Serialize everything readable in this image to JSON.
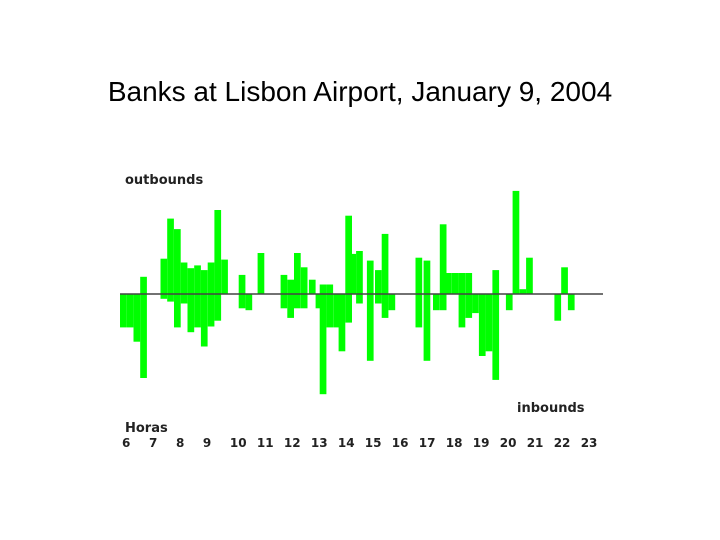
{
  "chart_data": {
    "type": "bar",
    "title": "Banks at Lisbon Airport, January 9, 2004",
    "top_label": "outbounds",
    "bottom_label": "inbounds",
    "xlabel": "Horas",
    "x_ticks": [
      "6",
      "7",
      "8",
      "9",
      "10",
      "11",
      "12",
      "13",
      "14",
      "15",
      "16",
      "17",
      "18",
      "19",
      "20",
      "21",
      "22",
      "23"
    ],
    "xlim": [
      6,
      23.9
    ],
    "ylim": [
      -110,
      110
    ],
    "bar_width_hours": 0.25,
    "color": "#00ff00",
    "series": [
      {
        "values": [
          {
            "t": 6.0,
            "v": -35
          },
          {
            "t": 6.25,
            "v": -35
          },
          {
            "t": 6.5,
            "v": -50
          },
          {
            "t": 6.75,
            "v": -88
          },
          {
            "t": 6.75,
            "v": 18
          },
          {
            "t": 7.5,
            "v": 37
          },
          {
            "t": 7.75,
            "v": 79
          },
          {
            "t": 8.0,
            "v": 68
          },
          {
            "t": 8.25,
            "v": 33
          },
          {
            "t": 8.5,
            "v": 27
          },
          {
            "t": 8.75,
            "v": 30
          },
          {
            "t": 9.0,
            "v": 25
          },
          {
            "t": 9.25,
            "v": 33
          },
          {
            "t": 9.5,
            "v": 88
          },
          {
            "t": 9.75,
            "v": 36
          },
          {
            "t": 7.5,
            "v": -5
          },
          {
            "t": 7.75,
            "v": -8
          },
          {
            "t": 8.0,
            "v": -35
          },
          {
            "t": 8.25,
            "v": -10
          },
          {
            "t": 8.5,
            "v": -40
          },
          {
            "t": 8.75,
            "v": -35
          },
          {
            "t": 9.0,
            "v": -55
          },
          {
            "t": 9.25,
            "v": -34
          },
          {
            "t": 9.5,
            "v": -28
          },
          {
            "t": 10.4,
            "v": 20
          },
          {
            "t": 10.4,
            "v": -15
          },
          {
            "t": 10.65,
            "v": -17
          },
          {
            "t": 11.1,
            "v": 43
          },
          {
            "t": 11.95,
            "v": 20
          },
          {
            "t": 12.2,
            "v": 15
          },
          {
            "t": 12.45,
            "v": 43
          },
          {
            "t": 12.7,
            "v": 28
          },
          {
            "t": 11.95,
            "v": -15
          },
          {
            "t": 12.2,
            "v": -25
          },
          {
            "t": 12.45,
            "v": -15
          },
          {
            "t": 12.7,
            "v": -15
          },
          {
            "t": 13.0,
            "v": 15
          },
          {
            "t": 13.25,
            "v": -15
          },
          {
            "t": 13.4,
            "v": -105
          },
          {
            "t": 13.65,
            "v": -35
          },
          {
            "t": 13.9,
            "v": -35
          },
          {
            "t": 13.4,
            "v": 10
          },
          {
            "t": 13.65,
            "v": 10
          },
          {
            "t": 14.1,
            "v": -60
          },
          {
            "t": 14.35,
            "v": 82
          },
          {
            "t": 14.5,
            "v": 42
          },
          {
            "t": 14.75,
            "v": 45
          },
          {
            "t": 14.35,
            "v": -30
          },
          {
            "t": 14.75,
            "v": -10
          },
          {
            "t": 15.15,
            "v": 35
          },
          {
            "t": 15.15,
            "v": -70
          },
          {
            "t": 15.45,
            "v": 25
          },
          {
            "t": 15.7,
            "v": 63
          },
          {
            "t": 15.45,
            "v": -10
          },
          {
            "t": 15.7,
            "v": -25
          },
          {
            "t": 15.95,
            "v": -17
          },
          {
            "t": 16.95,
            "v": 38
          },
          {
            "t": 16.95,
            "v": -35
          },
          {
            "t": 17.25,
            "v": -70
          },
          {
            "t": 17.25,
            "v": 35
          },
          {
            "t": 17.6,
            "v": -17
          },
          {
            "t": 17.85,
            "v": 73
          },
          {
            "t": 17.85,
            "v": -17
          },
          {
            "t": 18.05,
            "v": 22
          },
          {
            "t": 18.3,
            "v": 22
          },
          {
            "t": 18.55,
            "v": 22
          },
          {
            "t": 18.55,
            "v": -35
          },
          {
            "t": 18.8,
            "v": 22
          },
          {
            "t": 18.8,
            "v": -25
          },
          {
            "t": 19.05,
            "v": -20
          },
          {
            "t": 19.3,
            "v": -65
          },
          {
            "t": 19.55,
            "v": -60
          },
          {
            "t": 19.8,
            "v": -90
          },
          {
            "t": 19.8,
            "v": 25
          },
          {
            "t": 20.3,
            "v": -17
          },
          {
            "t": 20.55,
            "v": 108
          },
          {
            "t": 20.8,
            "v": 5
          },
          {
            "t": 21.05,
            "v": 38
          },
          {
            "t": 22.1,
            "v": -28
          },
          {
            "t": 22.35,
            "v": 28
          },
          {
            "t": 22.6,
            "v": -17
          }
        ]
      }
    ],
    "grid": false
  }
}
